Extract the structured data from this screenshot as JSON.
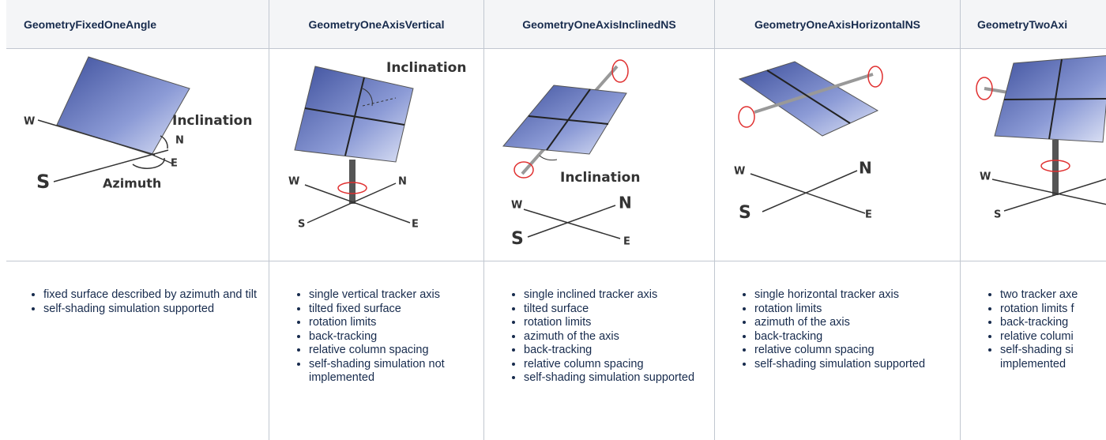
{
  "table": {
    "columns": [
      {
        "header": "GeometryFixedOneAngle",
        "diagram": {
          "labels": [
            "W",
            "Inclination",
            "N",
            "E",
            "S",
            "Azimuth"
          ]
        },
        "features": [
          "fixed surface described by azimuth and tilt",
          "self-shading simulation supported"
        ]
      },
      {
        "header": "GeometryOneAxisVertical",
        "diagram": {
          "labels": [
            "Inclination",
            "W",
            "N",
            "S",
            "E"
          ]
        },
        "features": [
          "single vertical tracker axis",
          "tilted fixed surface",
          "rotation limits",
          "back-tracking",
          "relative column spacing",
          "self-shading simulation not implemented"
        ]
      },
      {
        "header": "GeometryOneAxisInclinedNS",
        "diagram": {
          "labels": [
            "Inclination",
            "W",
            "N",
            "S",
            "E"
          ]
        },
        "features": [
          "single inclined tracker axis",
          "tilted surface",
          "rotation limits",
          "azimuth of the axis",
          "back-tracking",
          "relative column spacing",
          "self-shading simulation supported"
        ]
      },
      {
        "header": "GeometryOneAxisHorizontalNS",
        "diagram": {
          "labels": [
            "W",
            "N",
            "S",
            "E"
          ]
        },
        "features": [
          "single horizontal tracker axis",
          "rotation limits",
          "azimuth of the axis",
          "back-tracking",
          "relative column spacing",
          "self-shading simulation supported"
        ]
      },
      {
        "header": "GeometryTwoAxi",
        "diagram": {
          "labels": [
            "W",
            "S"
          ]
        },
        "features": [
          "two tracker axe",
          "rotation limits f",
          "back-tracking",
          "relative columi",
          "self-shading si implemented"
        ]
      }
    ]
  }
}
